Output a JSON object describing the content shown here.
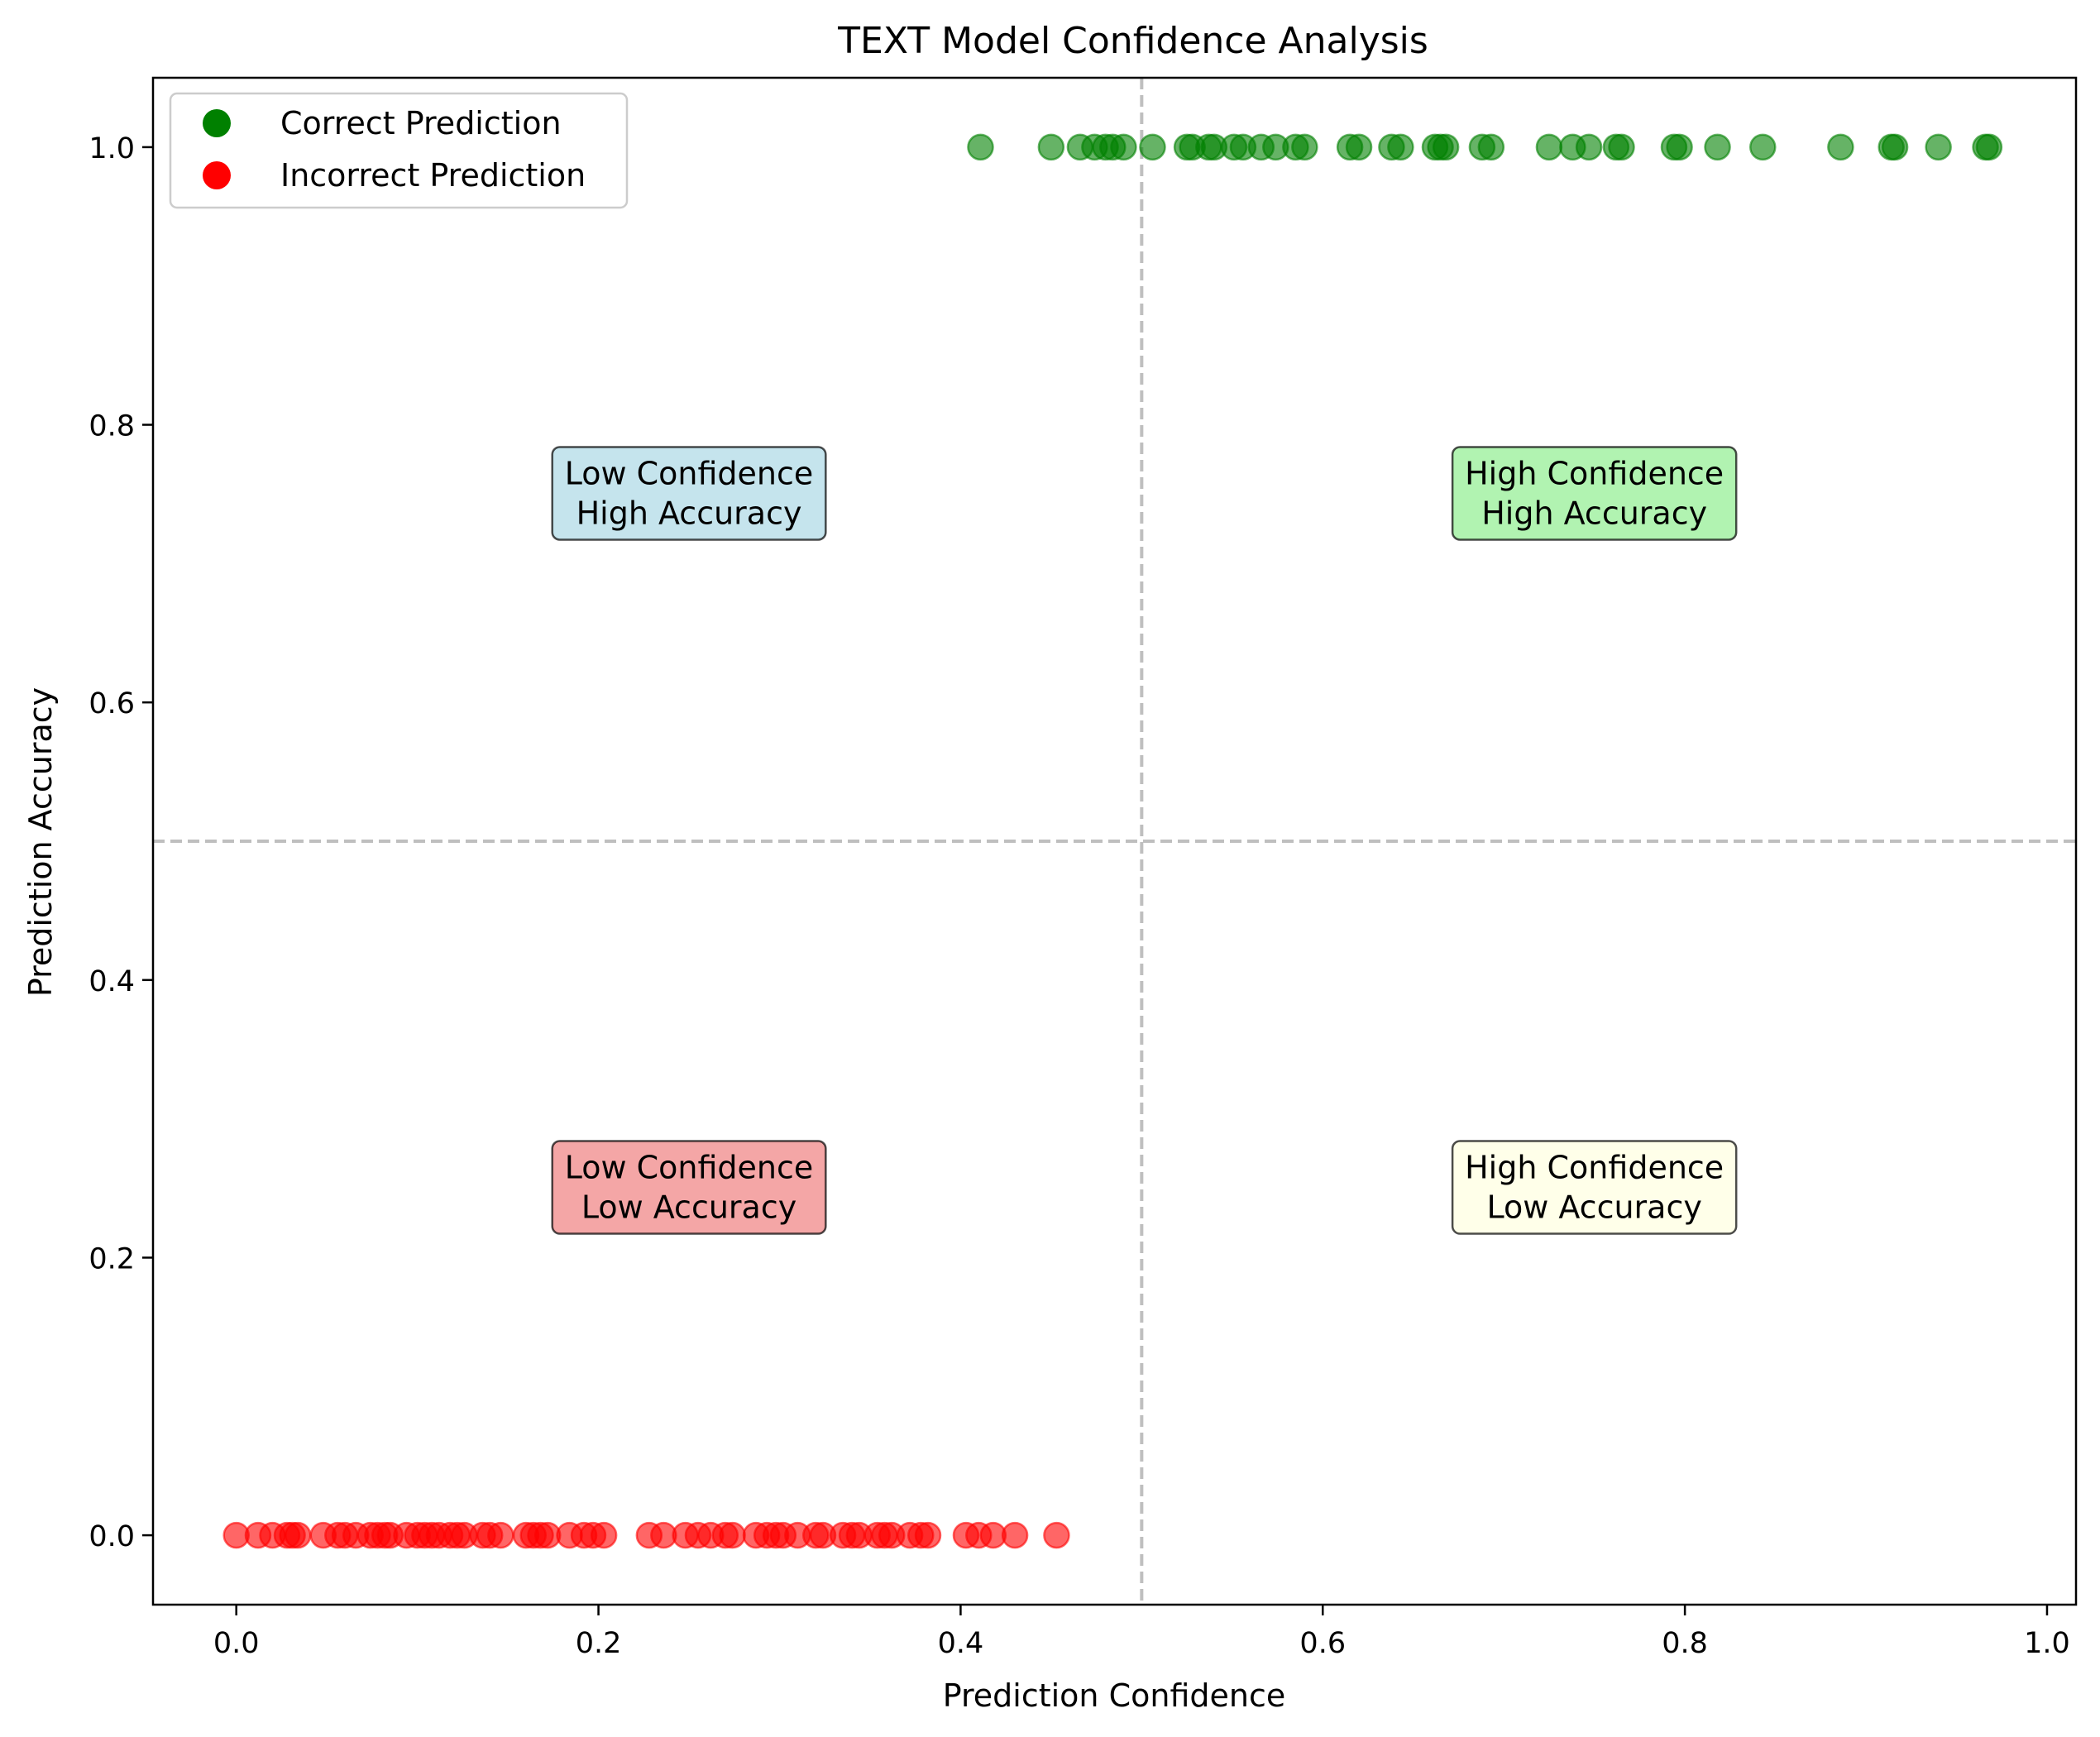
{
  "chart_data": {
    "type": "scatter",
    "title": "TEXT Model Confidence Analysis",
    "xlabel": "Prediction Confidence",
    "ylabel": "Prediction Accuracy",
    "xlim": [
      -0.046,
      1.016
    ],
    "ylim": [
      -0.05,
      1.05
    ],
    "xticks": [
      "0.0",
      "0.2",
      "0.4",
      "0.6",
      "0.8",
      "1.0"
    ],
    "yticks": [
      "0.0",
      "0.2",
      "0.4",
      "0.6",
      "0.8",
      "1.0"
    ],
    "grid": false,
    "legend_position": "top-left",
    "threshold_lines": {
      "x": 0.5,
      "y": 0.5,
      "color": "#bfbfbf"
    },
    "series": [
      {
        "name": "Correct Prediction",
        "color": "#008000",
        "y": 1.0,
        "x": [
          0.411,
          0.45,
          0.466,
          0.474,
          0.48,
          0.484,
          0.49,
          0.506,
          0.525,
          0.528,
          0.537,
          0.54,
          0.551,
          0.556,
          0.566,
          0.574,
          0.585,
          0.59,
          0.615,
          0.62,
          0.638,
          0.643,
          0.662,
          0.665,
          0.668,
          0.688,
          0.693,
          0.725,
          0.738,
          0.747,
          0.762,
          0.765,
          0.794,
          0.797,
          0.818,
          0.843,
          0.886,
          0.914,
          0.916,
          0.94,
          0.966,
          0.968
        ]
      },
      {
        "name": "Incorrect Prediction",
        "color": "#ff0000",
        "y": 0.0,
        "x": [
          0.0,
          0.012,
          0.02,
          0.028,
          0.031,
          0.034,
          0.048,
          0.056,
          0.06,
          0.066,
          0.074,
          0.078,
          0.082,
          0.085,
          0.094,
          0.1,
          0.104,
          0.108,
          0.112,
          0.118,
          0.122,
          0.126,
          0.136,
          0.14,
          0.146,
          0.16,
          0.164,
          0.168,
          0.172,
          0.184,
          0.192,
          0.197,
          0.203,
          0.228,
          0.236,
          0.248,
          0.255,
          0.262,
          0.27,
          0.274,
          0.287,
          0.293,
          0.298,
          0.302,
          0.31,
          0.32,
          0.324,
          0.335,
          0.34,
          0.344,
          0.354,
          0.358,
          0.362,
          0.372,
          0.378,
          0.382,
          0.403,
          0.41,
          0.418,
          0.43,
          0.453
        ]
      }
    ],
    "quadrant_labels": [
      {
        "line1": "Low Confidence",
        "line2": "High Accuracy",
        "x": 0.25,
        "y": 0.75,
        "color": "#add8e6"
      },
      {
        "line1": "High Confidence",
        "line2": "High Accuracy",
        "x": 0.75,
        "y": 0.75,
        "color": "#90ee90"
      },
      {
        "line1": "Low Confidence",
        "line2": "Low Accuracy",
        "x": 0.25,
        "y": 0.25,
        "color": "#f08080"
      },
      {
        "line1": "High Confidence",
        "line2": "Low Accuracy",
        "x": 0.75,
        "y": 0.25,
        "color": "#ffffe0"
      }
    ]
  }
}
